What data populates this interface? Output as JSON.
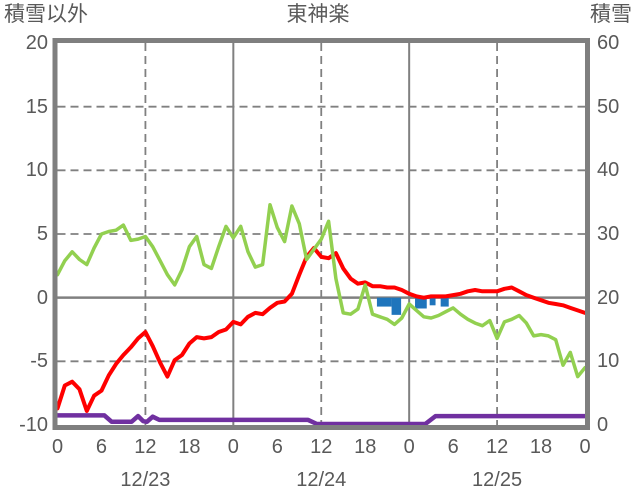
{
  "colors": {
    "background": "#FFFFFF",
    "text": "#595959",
    "border": "#7F7F7F",
    "grid": "#808080",
    "green_line": "#92D050",
    "red_line": "#FF0000",
    "purple_line": "#7030A0",
    "blue_bar": "#1F75BC"
  },
  "chart_data": {
    "type": "line",
    "title": "東神楽",
    "left_axis": {
      "label": "積雪以外",
      "range": [
        -10,
        20
      ],
      "ticks": [
        20,
        15,
        10,
        5,
        0,
        -5,
        -10
      ]
    },
    "right_axis": {
      "label": "積雪",
      "range": [
        0,
        60
      ],
      "ticks": [
        60,
        50,
        40,
        30,
        20,
        10,
        0
      ]
    },
    "x_axis": {
      "range_hours": [
        0,
        72
      ],
      "tick_hours": [
        0,
        6,
        12,
        18,
        24,
        30,
        36,
        42,
        48,
        54,
        60,
        66,
        72
      ],
      "tick_labels": [
        "0",
        "6",
        "12",
        "18",
        "0",
        "6",
        "12",
        "18",
        "0",
        "6",
        "12",
        "18",
        "0"
      ],
      "day_labels": [
        {
          "hour": 12,
          "label": "12/23"
        },
        {
          "hour": 36,
          "label": "12/24"
        },
        {
          "hour": 60,
          "label": "12/25"
        }
      ],
      "dashed_gridline_hours": [
        12,
        36,
        60
      ],
      "solid_gridline_hours": [
        24,
        48
      ]
    },
    "grid": {
      "h_dashed_values": [
        15,
        10,
        5,
        -5
      ],
      "h_solid_values": [
        0
      ]
    },
    "series": [
      {
        "name": "green-line",
        "axis": "left",
        "color_key": "green_line",
        "start_hour": 0,
        "step_hours": 1,
        "values": [
          1.8,
          2.9,
          3.6,
          3.0,
          2.6,
          3.9,
          5.0,
          5.2,
          5.3,
          5.7,
          4.5,
          4.6,
          4.8,
          4.0,
          2.9,
          1.8,
          1.0,
          2.2,
          4.0,
          4.8,
          2.6,
          2.3,
          4.0,
          5.6,
          4.7,
          5.6,
          3.6,
          2.4,
          2.6,
          7.3,
          5.5,
          4.4,
          7.2,
          5.8,
          3.0,
          3.8,
          4.6,
          6.0,
          1.5,
          -1.2,
          -1.3,
          -0.9,
          1.0,
          -1.3,
          -1.5,
          -1.7,
          -2.1,
          -1.6,
          -0.5,
          -1.0,
          -1.5,
          -1.6,
          -1.4,
          -1.1,
          -0.8,
          -1.3,
          -1.7,
          -2.0,
          -2.2,
          -1.8,
          -3.2,
          -1.9,
          -1.7,
          -1.4,
          -2.0,
          -3.0,
          -2.9,
          -3.0,
          -3.3,
          -5.3,
          -4.3,
          -6.2,
          -5.5
        ]
      },
      {
        "name": "red-line",
        "axis": "left",
        "color_key": "red_line",
        "start_hour": 0,
        "step_hours": 1,
        "values": [
          -8.7,
          -6.9,
          -6.6,
          -7.2,
          -8.9,
          -7.7,
          -7.3,
          -6.1,
          -5.2,
          -4.5,
          -3.9,
          -3.2,
          -2.7,
          -3.8,
          -5.1,
          -6.2,
          -4.9,
          -4.5,
          -3.6,
          -3.1,
          -3.2,
          -3.1,
          -2.7,
          -2.5,
          -1.9,
          -2.1,
          -1.5,
          -1.2,
          -1.3,
          -0.8,
          -0.4,
          -0.3,
          0.3,
          1.8,
          3.2,
          3.9,
          3.2,
          3.1,
          3.5,
          2.3,
          1.5,
          1.1,
          1.2,
          0.9,
          0.9,
          0.8,
          0.8,
          0.6,
          0.3,
          0.1,
          0.0,
          0.1,
          0.1,
          0.1,
          0.2,
          0.3,
          0.5,
          0.6,
          0.5,
          0.5,
          0.5,
          0.7,
          0.8,
          0.5,
          0.2,
          0.0,
          -0.2,
          -0.4,
          -0.5,
          -0.6,
          -0.8,
          -1.0,
          -1.2
        ]
      },
      {
        "name": "purple-line",
        "axis": "right",
        "color_key": "purple_line",
        "points": [
          [
            0,
            1.5
          ],
          [
            6.4,
            1.5
          ],
          [
            7.4,
            0.5
          ],
          [
            10.1,
            0.5
          ],
          [
            11.0,
            1.4
          ],
          [
            11.7,
            0.6
          ],
          [
            12.2,
            0.5
          ],
          [
            13.0,
            1.3
          ],
          [
            13.9,
            0.8
          ],
          [
            34.2,
            0.8
          ],
          [
            35.4,
            0.15
          ],
          [
            50.2,
            0.15
          ],
          [
            51.6,
            1.4
          ],
          [
            72,
            1.4
          ]
        ]
      }
    ],
    "bars": {
      "name": "blue-bars",
      "axis": "left",
      "color_key": "blue_bar",
      "hang_from_value": 0,
      "segments": [
        [
          43.6,
          45.6,
          0.7
        ],
        [
          45.6,
          46.9,
          1.35
        ],
        [
          48.8,
          50.4,
          0.85
        ],
        [
          50.8,
          51.6,
          0.6
        ],
        [
          52.3,
          53.4,
          0.7
        ]
      ]
    }
  }
}
